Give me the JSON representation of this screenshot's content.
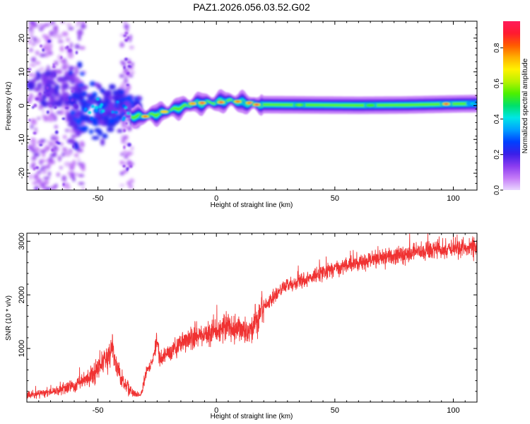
{
  "figure": {
    "title": "PAZ1.2026.056.03.52.G02"
  },
  "chart_data": [
    {
      "type": "heatmap",
      "name": "spectrogram",
      "xlabel": "Height of straight line (km)",
      "ylabel": "Frequency (Hz)",
      "xlim": [
        -80,
        110
      ],
      "ylim": [
        -25,
        25
      ],
      "x_ticks": [
        -50,
        0,
        50,
        100
      ],
      "x_tick_labels": [
        "-50",
        "0",
        "50",
        "100"
      ],
      "y_ticks": [
        20,
        10,
        0,
        -10,
        -20
      ],
      "y_tick_labels": [
        "20",
        "10",
        "0",
        "-10",
        "-20"
      ],
      "ridge_profile": [
        {
          "x": -32,
          "f": -3.2
        },
        {
          "x": -25,
          "f": -2.5
        },
        {
          "x": -20,
          "f": -1.5
        },
        {
          "x": -15,
          "f": -0.5
        },
        {
          "x": -10,
          "f": 0.5
        },
        {
          "x": -5,
          "f": 0.8
        },
        {
          "x": 0,
          "f": 1.0
        },
        {
          "x": 5,
          "f": 1.5
        },
        {
          "x": 10,
          "f": 1.0
        },
        {
          "x": 15,
          "f": 0.5
        },
        {
          "x": 20,
          "f": 0.3
        },
        {
          "x": 40,
          "f": 0.2
        },
        {
          "x": 60,
          "f": 0.1
        },
        {
          "x": 80,
          "f": 0.2
        },
        {
          "x": 100,
          "f": 0.5
        },
        {
          "x": 110,
          "f": 0.6
        }
      ],
      "ridge_peaks": [
        {
          "x": -30,
          "f": -3.2,
          "amp": 0.85
        },
        {
          "x": -22,
          "f": -1.8,
          "amp": 0.75
        },
        {
          "x": -10,
          "f": 0.6,
          "amp": 0.8
        },
        {
          "x": -6,
          "f": 0.8,
          "amp": 0.95
        },
        {
          "x": 2,
          "f": 1.0,
          "amp": 0.95
        },
        {
          "x": 9,
          "f": 1.2,
          "amp": 0.85
        },
        {
          "x": 14,
          "f": 0.8,
          "amp": 0.85
        },
        {
          "x": 17,
          "f": 0.3,
          "amp": 0.95
        },
        {
          "x": 35,
          "f": 0.2,
          "amp": 0.6
        },
        {
          "x": 65,
          "f": 0.1,
          "amp": 0.55
        },
        {
          "x": 97,
          "f": 0.5,
          "amp": 0.95
        },
        {
          "x": 108,
          "f": 0.6,
          "amp": 0.45
        }
      ],
      "colorbar": {
        "label": "Normalized spectral amplitude",
        "range": [
          0,
          0.95
        ],
        "ticks": [
          "0.0",
          "0.2",
          "0.4",
          "0.6",
          "0.8"
        ],
        "tick_values": [
          0.0,
          0.2,
          0.4,
          0.6,
          0.8
        ],
        "colors": [
          "#e9d6ff",
          "#c47af7",
          "#8a3bf0",
          "#3a1fe8",
          "#0040ff",
          "#00a0ff",
          "#00e6e6",
          "#00e06a",
          "#4cf000",
          "#b9f200",
          "#fff200",
          "#ffb000",
          "#ff5a00",
          "#ff1a30",
          "#ff1a5a"
        ]
      }
    },
    {
      "type": "line",
      "name": "snr",
      "xlabel": "Height of straight line (km)",
      "ylabel": "SNR (10 * v/v)",
      "xlim": [
        -80,
        110
      ],
      "ylim": [
        0,
        3150
      ],
      "x_ticks": [
        -50,
        0,
        50,
        100
      ],
      "x_tick_labels": [
        "-50",
        "0",
        "50",
        "100"
      ],
      "y_ticks": [
        1000,
        2000,
        3000
      ],
      "y_tick_labels": [
        "1000",
        "2000",
        "3000"
      ],
      "line_color": "#f03232",
      "series": [
        {
          "name": "SNR",
          "x": [
            -80,
            -75,
            -70,
            -65,
            -60,
            -57,
            -55,
            -52,
            -50,
            -48,
            -46,
            -44,
            -43,
            -42,
            -40,
            -38,
            -36,
            -34,
            -32,
            -31,
            -30,
            -28,
            -26,
            -25,
            -24,
            -22,
            -20,
            -17,
            -15,
            -12,
            -10,
            -7,
            -5,
            -2,
            0,
            3,
            5,
            8,
            10,
            12,
            14,
            16,
            18,
            20,
            23,
            25,
            28,
            30,
            35,
            40,
            45,
            50,
            55,
            60,
            65,
            70,
            75,
            80,
            85,
            90,
            95,
            100,
            105,
            110
          ],
          "y": [
            130,
            160,
            190,
            240,
            310,
            380,
            420,
            520,
            640,
            760,
            820,
            1050,
            760,
            600,
            420,
            310,
            200,
            150,
            140,
            280,
            520,
            680,
            900,
            1200,
            820,
            860,
            920,
            1000,
            1100,
            1150,
            1180,
            1250,
            1280,
            1300,
            1330,
            1380,
            1420,
            1360,
            1340,
            1300,
            1320,
            1480,
            1600,
            1780,
            1900,
            2000,
            2120,
            2180,
            2240,
            2330,
            2410,
            2480,
            2550,
            2590,
            2640,
            2680,
            2730,
            2760,
            2800,
            2830,
            2850,
            2870,
            2880,
            2900
          ]
        }
      ]
    }
  ]
}
